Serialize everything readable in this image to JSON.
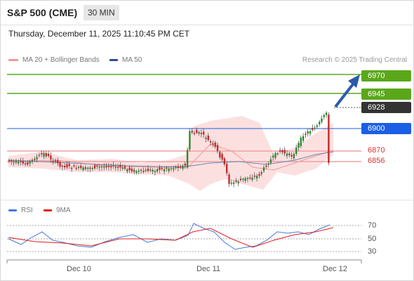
{
  "header": {
    "title": "S&P 500 (CME)",
    "timeframe": "30 MIN",
    "datetime": "Thursday, December 11, 2025 11:10:45 PM CET"
  },
  "legend": {
    "ma_bb": "MA 20 + Bollinger Bands",
    "ma50": "MA 50",
    "credit": "Research © 2025 Trading Central"
  },
  "levels": [
    {
      "label": "6970",
      "kind": "resistance"
    },
    {
      "label": "6945",
      "kind": "resistance"
    },
    {
      "label": "6928",
      "kind": "last"
    },
    {
      "label": "6900",
      "kind": "pivot"
    },
    {
      "label": "6870",
      "kind": "support"
    },
    {
      "label": "6856",
      "kind": "support"
    }
  ],
  "rsi_legend": {
    "rsi": "RSI",
    "ma9": "9MA"
  },
  "rsi_axis": [
    "70",
    "50",
    "30"
  ],
  "x_axis": [
    "Dec 10",
    "Dec 11",
    "Dec 12"
  ],
  "colors": {
    "resistance": "#5aa81a",
    "pivot": "#1a5fe6",
    "support": "#d63232",
    "last": "#333333",
    "up": "#2e8b2e",
    "down": "#c62828"
  }
}
